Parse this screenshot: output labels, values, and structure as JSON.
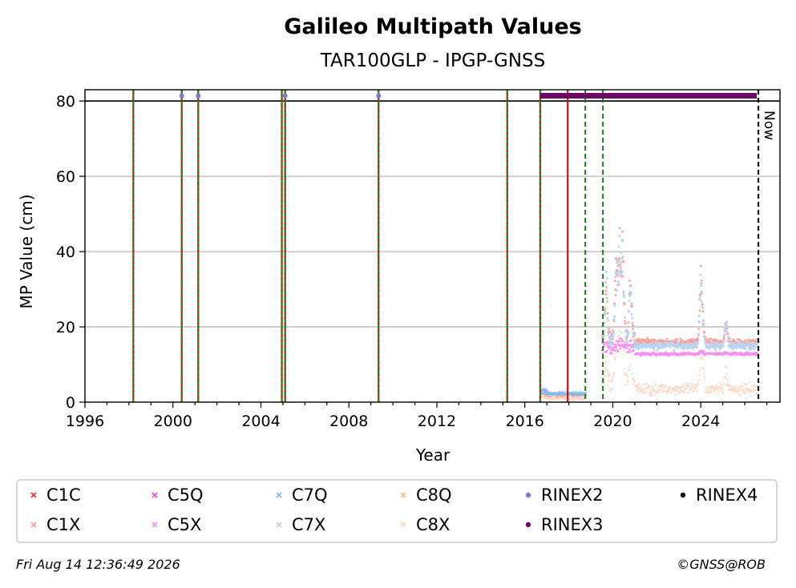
{
  "chart_data": {
    "type": "scatter",
    "title": "Galileo Multipath Values",
    "subtitle": "TAR100GLP - IPGP-GNSS",
    "xlabel": "Year",
    "ylabel": "MP Value (cm)",
    "xlim": [
      1996,
      2027.6
    ],
    "ylim": [
      0,
      83
    ],
    "x_ticks": [
      1996,
      2000,
      2004,
      2008,
      2012,
      2016,
      2020,
      2024
    ],
    "y_ticks": [
      0,
      20,
      40,
      60,
      80
    ],
    "grid": "y",
    "now_label": "Now",
    "now_year": 2026.62,
    "reference_line": 80,
    "red_event_years": [
      1998.2,
      2000.4,
      2001.15,
      2004.95,
      2005.1,
      2009.35,
      2015.2,
      2016.7,
      2017.95
    ],
    "green_event_years": [
      1998.2,
      2000.4,
      2001.15,
      2004.95,
      2005.1,
      2009.35,
      2015.2,
      2016.7
    ],
    "green_dashed_years": [
      2018.75,
      2019.55
    ],
    "rinex2_points": [
      2000.4,
      2001.15,
      2005.1,
      2009.35
    ],
    "rinex3_range": [
      2016.7,
      2026.55
    ],
    "series": [
      {
        "name": "C1C",
        "color": "#e8392e",
        "marker": "x"
      },
      {
        "name": "C1X",
        "color": "#f7a29b",
        "marker": "x"
      },
      {
        "name": "C5Q",
        "color": "#ee4be8",
        "marker": "x"
      },
      {
        "name": "C5X",
        "color": "#f691f2",
        "marker": "x"
      },
      {
        "name": "C7Q",
        "color": "#8bb6e8",
        "marker": "x"
      },
      {
        "name": "C7X",
        "color": "#bcd3f0",
        "marker": "x"
      },
      {
        "name": "C8Q",
        "color": "#f5b98f",
        "marker": "x"
      },
      {
        "name": "C8X",
        "color": "#fbd8c6",
        "marker": "x"
      },
      {
        "name": "RINEX2",
        "color": "#7d7bc6",
        "marker": "o"
      },
      {
        "name": "RINEX3",
        "color": "#6a0a63",
        "marker": "o"
      },
      {
        "name": "RINEX4",
        "color": "#1a0a22",
        "marker": "o"
      }
    ],
    "data_summary": [
      {
        "series": "C8X",
        "x_range": [
          2016.7,
          2018.8
        ],
        "typical": 1.2
      },
      {
        "series": "C1X",
        "x_range": [
          2016.7,
          2018.8
        ],
        "typical": 2.2
      },
      {
        "series": "C7X",
        "x_range": [
          2016.7,
          2018.8
        ],
        "typical": 2.5
      },
      {
        "series": "C5X",
        "x_range": [
          2019.5,
          2026.6
        ],
        "typical": 13
      },
      {
        "series": "C7X",
        "x_range": [
          2019.5,
          2026.6
        ],
        "typical": 15
      },
      {
        "series": "C1X",
        "x_range": [
          2019.5,
          2026.6
        ],
        "typical": 16
      },
      {
        "series": "C8X",
        "x_range": [
          2019.5,
          2026.6
        ],
        "typical": 4
      }
    ],
    "peaks": [
      {
        "x": 2019.7,
        "y": 33
      },
      {
        "x": 2020.15,
        "y": 40
      },
      {
        "x": 2020.3,
        "y": 46
      },
      {
        "x": 2020.45,
        "y": 46
      },
      {
        "x": 2020.8,
        "y": 37
      },
      {
        "x": 2024.0,
        "y": 37
      },
      {
        "x": 2024.1,
        "y": 22
      },
      {
        "x": 2025.15,
        "y": 23
      }
    ]
  },
  "footer": {
    "timestamp": "Fri Aug 14 12:36:49 2026",
    "credit": "©GNSS@ROB"
  }
}
